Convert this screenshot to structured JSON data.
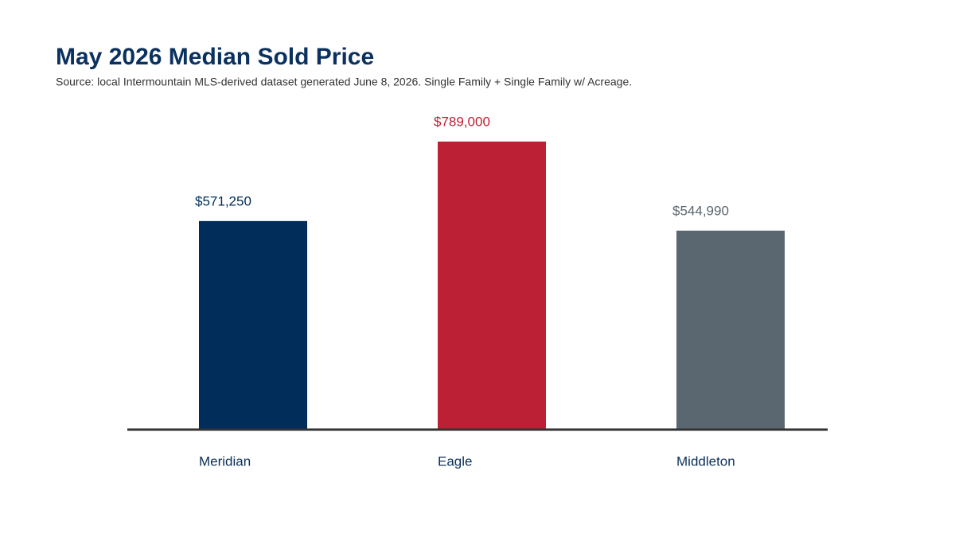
{
  "chart_data": {
    "type": "bar",
    "title": "May 2026 Median Sold Price",
    "subtitle": "Source: local Intermountain MLS-derived dataset generated June 8, 2026. Single Family + Single Family w/ Acreage.",
    "categories": [
      "Meridian",
      "Eagle",
      "Middleton"
    ],
    "values": [
      571250,
      789000,
      544990
    ],
    "value_labels": [
      "$571,250",
      "$789,000",
      "$544,990"
    ],
    "colors": [
      "#002d5a",
      "#bc2034",
      "#5b6770"
    ],
    "ylim": [
      0,
      900000
    ]
  }
}
